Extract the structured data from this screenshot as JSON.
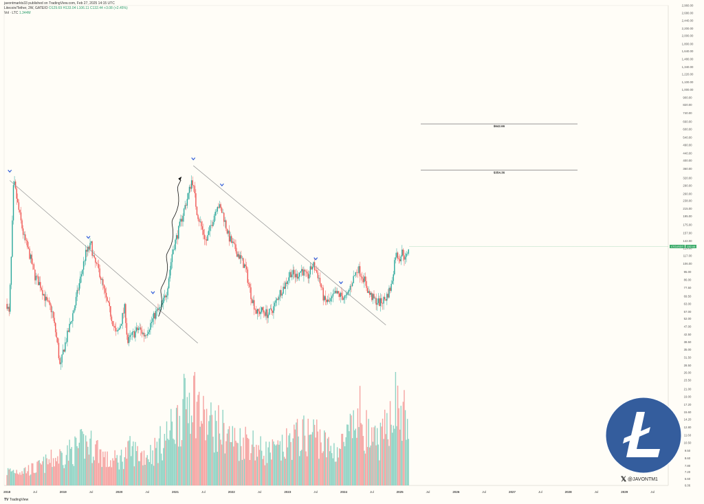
{
  "header": {
    "line1": "javontmarkts33 published on TradingView.com, Feb 27, 2025 14:15 UTC",
    "line2_pair": "Litecoin/Tether, 2W, GATEIO",
    "line2_ohlc": "O129.69 H133.04 L106.11 C132.44 +3.08 (+2.45%)",
    "line3_vol": "Vol · LTC",
    "line3_vol_value": "1.344M"
  },
  "chart_data": {
    "type": "candlestick",
    "symbol": "LTCUSDT",
    "y_scale": "log",
    "ylim": [
      6.06,
      2960
    ],
    "y_ticks": [
      "2,960.00",
      "2,680.00",
      "2,440.00",
      "2,200.00",
      "2,000.00",
      "1,800.00",
      "1,640.00",
      "1,480.00",
      "1,340.00",
      "1,220.00",
      "1,100.00",
      "1,000.00",
      "900.00",
      "820.00",
      "740.00",
      "660.00",
      "600.00",
      "540.00",
      "490.00",
      "440.00",
      "400.00",
      "360.00",
      "320.00",
      "290.00",
      "260.00",
      "238.00",
      "215.00",
      "195.00",
      "175.00",
      "157.00",
      "142.00",
      "129.00",
      "117.00",
      "106.00",
      "95.00",
      "86.00",
      "77.50",
      "69.50",
      "63.00",
      "57.00",
      "52.00",
      "47.00",
      "42.50",
      "38.50",
      "35.00",
      "31.50",
      "28.50",
      "26.00",
      "23.50",
      "21.00",
      "19.00",
      "17.20",
      "15.60",
      "14.20",
      "12.80",
      "11.60",
      "10.50",
      "9.50",
      "8.60",
      "7.80",
      "7.20",
      "6.60",
      "6.06"
    ],
    "x_ticks": [
      "2018",
      "Jul",
      "2019",
      "Jul",
      "2020",
      "Jul",
      "2021",
      "Jul",
      "2022",
      "Jul",
      "2023",
      "Jul",
      "2024",
      "Jul",
      "2025",
      "Jul",
      "2026",
      "Jul",
      "2027",
      "Jul",
      "2028",
      "Jul",
      "2029",
      "Jul"
    ],
    "last_price": "132.44",
    "last_price_badges": [
      "LTCUSDT",
      "132.44"
    ],
    "levels": [
      {
        "label": "$642.66",
        "value": 642.66
      },
      {
        "label": "$354.36",
        "value": 354.36
      }
    ],
    "close_path": [
      [
        2018.0,
        63
      ],
      [
        2018.04,
        55
      ],
      [
        2018.08,
        120
      ],
      [
        2018.12,
        310
      ],
      [
        2018.2,
        220
      ],
      [
        2018.3,
        150
      ],
      [
        2018.4,
        120
      ],
      [
        2018.5,
        90
      ],
      [
        2018.6,
        80
      ],
      [
        2018.7,
        65
      ],
      [
        2018.8,
        58
      ],
      [
        2018.9,
        38
      ],
      [
        2018.95,
        27
      ],
      [
        2019.0,
        34
      ],
      [
        2019.1,
        45
      ],
      [
        2019.2,
        60
      ],
      [
        2019.3,
        85
      ],
      [
        2019.4,
        120
      ],
      [
        2019.5,
        135
      ],
      [
        2019.55,
        110
      ],
      [
        2019.65,
        95
      ],
      [
        2019.75,
        70
      ],
      [
        2019.85,
        55
      ],
      [
        2019.95,
        42
      ],
      [
        2020.0,
        46
      ],
      [
        2020.1,
        60
      ],
      [
        2020.15,
        38
      ],
      [
        2020.2,
        41
      ],
      [
        2020.35,
        46
      ],
      [
        2020.45,
        42
      ],
      [
        2020.55,
        48
      ],
      [
        2020.65,
        56
      ],
      [
        2020.75,
        60
      ],
      [
        2020.85,
        75
      ],
      [
        2020.95,
        125
      ],
      [
        2021.05,
        160
      ],
      [
        2021.15,
        210
      ],
      [
        2021.22,
        250
      ],
      [
        2021.3,
        320
      ],
      [
        2021.38,
        210
      ],
      [
        2021.45,
        175
      ],
      [
        2021.55,
        140
      ],
      [
        2021.65,
        180
      ],
      [
        2021.75,
        230
      ],
      [
        2021.85,
        200
      ],
      [
        2021.95,
        150
      ],
      [
        2022.05,
        130
      ],
      [
        2022.15,
        115
      ],
      [
        2022.25,
        100
      ],
      [
        2022.35,
        70
      ],
      [
        2022.45,
        56
      ],
      [
        2022.55,
        58
      ],
      [
        2022.65,
        55
      ],
      [
        2022.75,
        60
      ],
      [
        2022.85,
        72
      ],
      [
        2022.95,
        80
      ],
      [
        2023.05,
        95
      ],
      [
        2023.15,
        90
      ],
      [
        2023.25,
        98
      ],
      [
        2023.35,
        88
      ],
      [
        2023.45,
        105
      ],
      [
        2023.55,
        90
      ],
      [
        2023.65,
        66
      ],
      [
        2023.75,
        64
      ],
      [
        2023.85,
        72
      ],
      [
        2023.95,
        70
      ],
      [
        2024.05,
        68
      ],
      [
        2024.15,
        85
      ],
      [
        2024.25,
        100
      ],
      [
        2024.35,
        88
      ],
      [
        2024.45,
        72
      ],
      [
        2024.55,
        66
      ],
      [
        2024.65,
        64
      ],
      [
        2024.75,
        68
      ],
      [
        2024.85,
        80
      ],
      [
        2024.92,
        120
      ],
      [
        2025.0,
        115
      ],
      [
        2025.05,
        125
      ],
      [
        2025.1,
        110
      ],
      [
        2025.15,
        130
      ],
      [
        2025.17,
        132.44
      ]
    ],
    "volume_path": [
      [
        2018.0,
        0.12
      ],
      [
        2018.5,
        0.14
      ],
      [
        2018.9,
        0.24
      ],
      [
        2019.2,
        0.3
      ],
      [
        2019.4,
        0.36
      ],
      [
        2019.6,
        0.32
      ],
      [
        2019.8,
        0.2
      ],
      [
        2020.0,
        0.22
      ],
      [
        2020.2,
        0.3
      ],
      [
        2020.4,
        0.26
      ],
      [
        2020.6,
        0.28
      ],
      [
        2020.9,
        0.45
      ],
      [
        2021.1,
        0.6
      ],
      [
        2021.3,
        0.82
      ],
      [
        2021.5,
        0.55
      ],
      [
        2021.7,
        0.5
      ],
      [
        2021.9,
        0.45
      ],
      [
        2022.1,
        0.36
      ],
      [
        2022.3,
        0.4
      ],
      [
        2022.5,
        0.3
      ],
      [
        2022.7,
        0.28
      ],
      [
        2022.9,
        0.3
      ],
      [
        2023.1,
        0.4
      ],
      [
        2023.3,
        0.42
      ],
      [
        2023.5,
        0.45
      ],
      [
        2023.7,
        0.32
      ],
      [
        2023.9,
        0.3
      ],
      [
        2024.1,
        0.42
      ],
      [
        2024.3,
        0.6
      ],
      [
        2024.5,
        0.35
      ],
      [
        2024.7,
        0.4
      ],
      [
        2024.9,
        0.75
      ],
      [
        2025.0,
        0.6
      ],
      [
        2025.17,
        0.55
      ]
    ],
    "annotations": {
      "left_trendline": {
        "from": [
          2018.05,
          310
        ],
        "to": [
          2021.4,
          38
        ]
      },
      "right_trendline": {
        "from": [
          2021.32,
          375
        ],
        "to": [
          2024.75,
          48
        ]
      },
      "arrow_path_ranges": {
        "x": [
          2020.7,
          2021.1
        ],
        "y": [
          55,
          320
        ]
      },
      "pivot_markers": [
        [
          2018.05,
          350
        ],
        [
          2019.45,
          149
        ],
        [
          2020.6,
          73
        ],
        [
          2021.32,
          410
        ],
        [
          2021.83,
          293
        ],
        [
          2023.5,
          113
        ],
        [
          2023.95,
          83
        ]
      ]
    }
  },
  "branding": {
    "handle": "@JAVONTM1",
    "x_icon": "x-logo-icon",
    "ltc_logo": "litecoin-logo",
    "ltc_letter": "Ł",
    "tradingview": "TradingView",
    "colors": {
      "up": "#26a69a",
      "down": "#ef5350",
      "vol_up": "#8fd3c4",
      "vol_down": "#f5a3a1",
      "ltc_blue": "#345d9d",
      "pivot": "#2f5bd8",
      "badge": "#3cab6a"
    }
  }
}
